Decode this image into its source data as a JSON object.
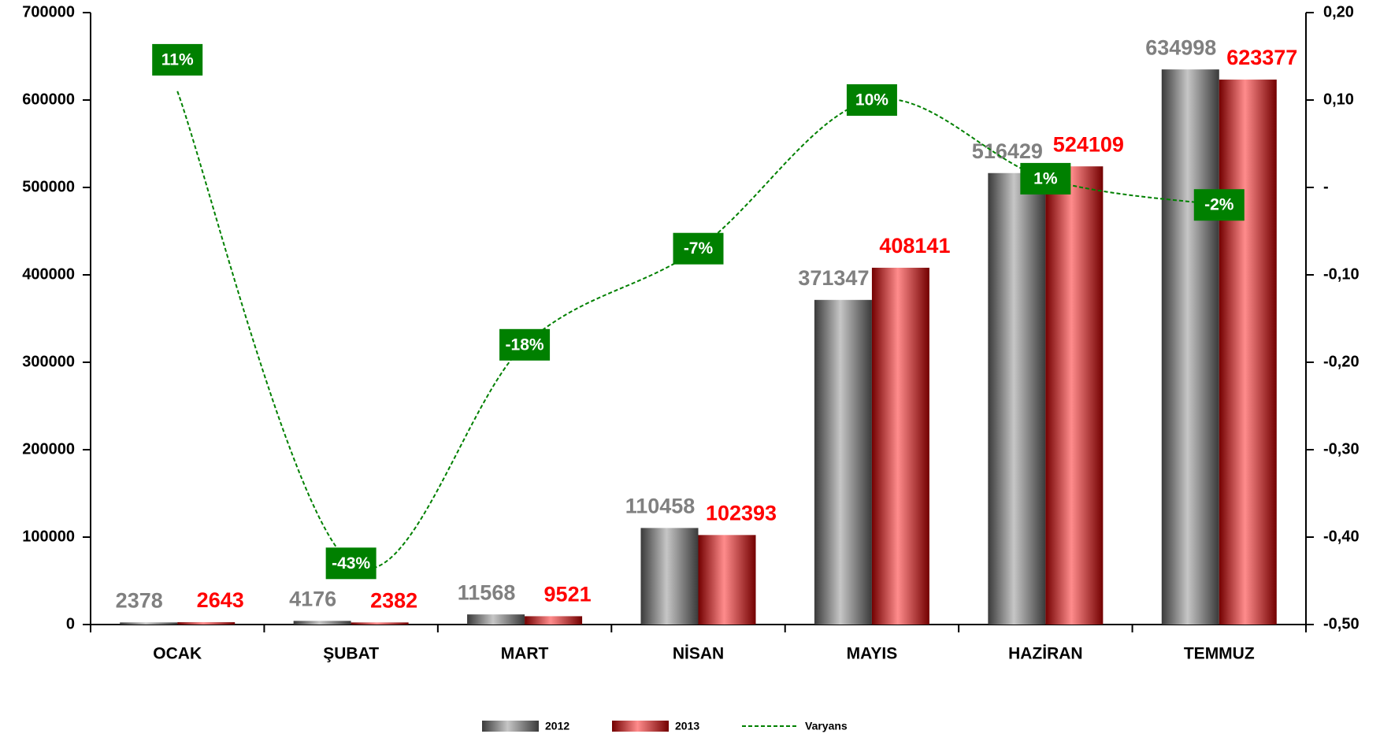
{
  "chart_data": {
    "type": "bar",
    "categories": [
      "OCAK",
      "ŞUBAT",
      "MART",
      "NİSAN",
      "MAYIS",
      "HAZİRAN",
      "TEMMUZ"
    ],
    "series": [
      {
        "name": "2012",
        "color": "#808080",
        "values": [
          2378,
          4176,
          11568,
          110458,
          371347,
          516429,
          634998
        ]
      },
      {
        "name": "2013",
        "color": "#ff0000",
        "values": [
          2643,
          2382,
          9521,
          102393,
          408141,
          524109,
          623377
        ]
      },
      {
        "name": "Varyans",
        "type": "line",
        "axis": "y2",
        "color": "#008000",
        "values": [
          0.11,
          -0.43,
          -0.18,
          -0.07,
          0.1,
          0.01,
          -0.02
        ],
        "value_labels": [
          "11%",
          "-43%",
          "-18%",
          "-7%",
          "10%",
          "1%",
          "-2%"
        ]
      }
    ],
    "ylim": [
      0,
      700000
    ],
    "yticks": [
      0,
      100000,
      200000,
      300000,
      400000,
      500000,
      600000,
      700000
    ],
    "y2lim": [
      -0.5,
      0.2
    ],
    "y2ticks": [
      {
        "value": 0.2,
        "label": "0,20"
      },
      {
        "value": 0.1,
        "label": "0,10"
      },
      {
        "value": 0,
        "label": "-"
      },
      {
        "value": -0.1,
        "label": "-0,10"
      },
      {
        "value": -0.2,
        "label": "-0,20"
      },
      {
        "value": -0.3,
        "label": "-0,30"
      },
      {
        "value": -0.4,
        "label": "-0,40"
      },
      {
        "value": -0.5,
        "label": "-0,50"
      }
    ],
    "legend": "bottom"
  }
}
